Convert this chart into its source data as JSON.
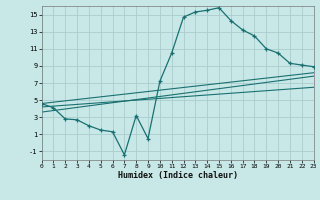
{
  "xlabel": "Humidex (Indice chaleur)",
  "bg_color": "#c8e8e8",
  "grid_color": "#aacccc",
  "line_color": "#1a7070",
  "xlim": [
    0,
    23
  ],
  "ylim": [
    -2,
    16
  ],
  "xticks": [
    0,
    1,
    2,
    3,
    4,
    5,
    6,
    7,
    8,
    9,
    10,
    11,
    12,
    13,
    14,
    15,
    16,
    17,
    18,
    19,
    20,
    21,
    22,
    23
  ],
  "yticks": [
    -1,
    1,
    3,
    5,
    7,
    9,
    11,
    13,
    15
  ],
  "curve_x": [
    0,
    1,
    2,
    3,
    4,
    5,
    6,
    7,
    8,
    9,
    10,
    11,
    12,
    13,
    14,
    15,
    16,
    17,
    18,
    19,
    20,
    21,
    22,
    23
  ],
  "curve_y": [
    4.6,
    4.1,
    2.8,
    2.7,
    2.0,
    1.5,
    1.3,
    -1.4,
    3.2,
    0.5,
    7.2,
    10.5,
    14.7,
    15.3,
    15.5,
    15.8,
    14.3,
    13.2,
    12.5,
    11.0,
    10.5,
    9.3,
    9.1,
    8.9
  ],
  "reg_line1_x": [
    0,
    23
  ],
  "reg_line1_y": [
    4.6,
    8.2
  ],
  "reg_line2_x": [
    0,
    23
  ],
  "reg_line2_y": [
    4.2,
    6.5
  ],
  "reg_line3_x": [
    0,
    23
  ],
  "reg_line3_y": [
    3.6,
    7.8
  ]
}
